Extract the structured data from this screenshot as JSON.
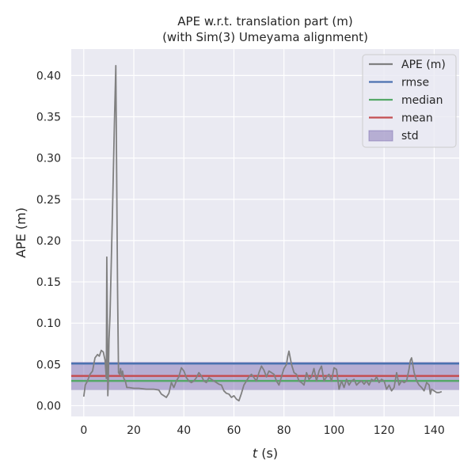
{
  "chart_data": {
    "type": "line",
    "title_lines": [
      "APE w.r.t. translation part (m)",
      "(with Sim(3) Umeyama alignment)"
    ],
    "xlabel_italic": "t",
    "xlabel_rest": " (s)",
    "ylabel": "APE (m)",
    "xlim": [
      -5,
      150
    ],
    "ylim": [
      -0.013,
      0.432
    ],
    "xticks": [
      0,
      20,
      40,
      60,
      80,
      100,
      120,
      140
    ],
    "yticks": [
      0.0,
      0.05,
      0.1,
      0.15,
      0.2,
      0.25,
      0.3,
      0.35,
      0.4
    ],
    "grid": true,
    "legend_position": "top-right",
    "legend": [
      {
        "label": "APE (m)",
        "kind": "line",
        "color": "#808080"
      },
      {
        "label": "rmse",
        "kind": "line",
        "color": "#4c72b0"
      },
      {
        "label": "median",
        "kind": "line",
        "color": "#55a868"
      },
      {
        "label": "mean",
        "kind": "line",
        "color": "#c44e52"
      },
      {
        "label": "std",
        "kind": "patch",
        "color": "#8172b3"
      }
    ],
    "stats": {
      "rmse": 0.051,
      "median": 0.03,
      "mean": 0.036,
      "std_low": 0.019,
      "std_high": 0.053
    },
    "series": [
      {
        "name": "APE (m)",
        "color": "#808080",
        "x": [
          0.0,
          0.6,
          1.5,
          2.5,
          3.5,
          4.5,
          5.5,
          6.2,
          7.0,
          7.8,
          8.5,
          9.0,
          9.2,
          9.4,
          9.6,
          9.8,
          10.1,
          10.5,
          11.5,
          12.3,
          12.8,
          13.1,
          13.5,
          13.9,
          14.3,
          14.7,
          15.1,
          15.5,
          16.0,
          16.6,
          17.2,
          18.0,
          20.0,
          22.0,
          25.0,
          28.0,
          30.0,
          31.0,
          32.0,
          33.0,
          34.0,
          35.0,
          36.0,
          37.0,
          38.0,
          39.0,
          40.0,
          41.0,
          42.0,
          43.0,
          44.0,
          45.0,
          46.0,
          47.0,
          48.0,
          49.0,
          50.0,
          51.0,
          52.0,
          53.0,
          54.0,
          55.0,
          56.0,
          57.0,
          58.0,
          59.0,
          60.0,
          61.0,
          62.0,
          63.0,
          64.0,
          65.0,
          66.0,
          67.0,
          68.0,
          69.0,
          70.0,
          71.0,
          72.0,
          73.0,
          74.0,
          75.0,
          76.0,
          77.0,
          78.0,
          79.0,
          80.0,
          81.0,
          81.5,
          82.0,
          83.0,
          84.0,
          85.0,
          86.0,
          87.0,
          88.0,
          89.0,
          90.0,
          91.0,
          92.0,
          93.0,
          94.0,
          95.0,
          96.0,
          97.0,
          98.0,
          99.0,
          100.0,
          101.0,
          102.0,
          103.0,
          104.0,
          105.0,
          106.0,
          107.0,
          108.0,
          109.0,
          110.0,
          111.0,
          112.0,
          113.0,
          114.0,
          115.0,
          116.0,
          117.0,
          118.0,
          119.0,
          120.0,
          121.0,
          122.0,
          123.0,
          124.0,
          125.0,
          126.0,
          127.0,
          128.0,
          129.0,
          130.0,
          130.5,
          131.0,
          132.0,
          133.0,
          134.0,
          135.0,
          136.0,
          137.0,
          138.0,
          138.5,
          139.0,
          140.0,
          141.0,
          142.0,
          143.0
        ],
        "y": [
          0.011,
          0.025,
          0.03,
          0.038,
          0.042,
          0.058,
          0.062,
          0.06,
          0.067,
          0.065,
          0.055,
          0.033,
          0.18,
          0.11,
          0.012,
          0.03,
          0.08,
          0.11,
          0.24,
          0.35,
          0.412,
          0.3,
          0.14,
          0.04,
          0.038,
          0.045,
          0.036,
          0.042,
          0.033,
          0.03,
          0.022,
          0.022,
          0.021,
          0.021,
          0.02,
          0.02,
          0.019,
          0.014,
          0.012,
          0.01,
          0.015,
          0.028,
          0.022,
          0.03,
          0.035,
          0.046,
          0.042,
          0.034,
          0.03,
          0.028,
          0.03,
          0.034,
          0.04,
          0.036,
          0.03,
          0.028,
          0.034,
          0.032,
          0.03,
          0.028,
          0.026,
          0.025,
          0.018,
          0.015,
          0.014,
          0.01,
          0.012,
          0.008,
          0.006,
          0.015,
          0.025,
          0.03,
          0.035,
          0.038,
          0.034,
          0.03,
          0.04,
          0.048,
          0.043,
          0.035,
          0.042,
          0.04,
          0.038,
          0.03,
          0.025,
          0.035,
          0.045,
          0.05,
          0.06,
          0.066,
          0.05,
          0.04,
          0.038,
          0.03,
          0.028,
          0.025,
          0.04,
          0.032,
          0.035,
          0.045,
          0.03,
          0.042,
          0.048,
          0.03,
          0.035,
          0.038,
          0.03,
          0.046,
          0.044,
          0.02,
          0.03,
          0.022,
          0.032,
          0.025,
          0.03,
          0.032,
          0.025,
          0.028,
          0.03,
          0.026,
          0.03,
          0.025,
          0.032,
          0.03,
          0.035,
          0.028,
          0.032,
          0.03,
          0.02,
          0.025,
          0.018,
          0.022,
          0.04,
          0.025,
          0.03,
          0.028,
          0.03,
          0.045,
          0.055,
          0.058,
          0.04,
          0.03,
          0.025,
          0.022,
          0.018,
          0.028,
          0.025,
          0.014,
          0.02,
          0.018,
          0.016,
          0.016,
          0.017
        ]
      }
    ]
  }
}
